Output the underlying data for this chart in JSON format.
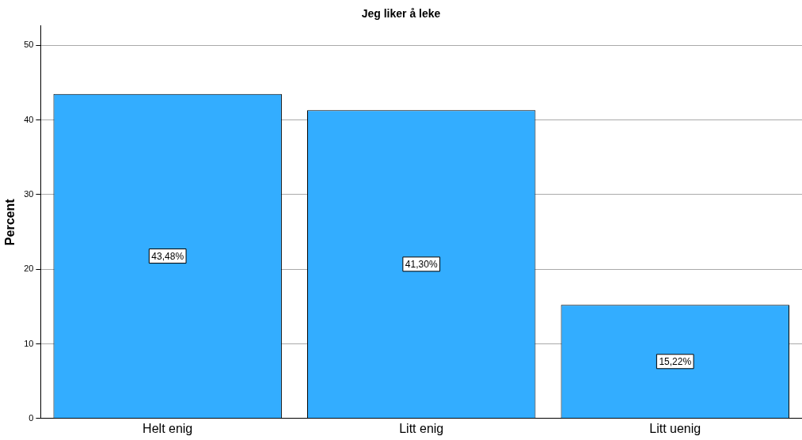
{
  "chart_data": {
    "type": "bar",
    "title": "Jeg liker å leke",
    "ylabel": "Percent",
    "categories": [
      "Helt enig",
      "Litt enig",
      "Litt uenig"
    ],
    "values": [
      43.48,
      41.3,
      15.22
    ],
    "color": "#33adff",
    "value_labels": [
      "43,48%",
      "41,30%",
      "15,22%"
    ],
    "ylim": [
      0,
      52.6
    ],
    "yticks": [
      0,
      10,
      20,
      30,
      40,
      50
    ],
    "grid": "y",
    "legend": false
  }
}
